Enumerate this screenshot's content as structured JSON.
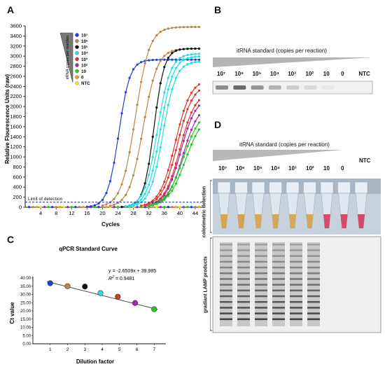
{
  "panels": {
    "A": {
      "letter": "A",
      "ylabel": "Relative Flourescence Units (raw)",
      "xlabel": "Cycles",
      "yticks": [
        0,
        200,
        400,
        600,
        800,
        1000,
        1200,
        1400,
        1600,
        1800,
        2000,
        2200,
        2400,
        2600,
        2800,
        3000,
        3200,
        3400,
        3600
      ],
      "xticks": [
        4,
        8,
        12,
        16,
        20,
        24,
        28,
        32,
        36,
        40,
        44
      ],
      "lod_label": "Limit of detection",
      "triangle_label": "itRNA copies per reaction",
      "legend": [
        {
          "label": "10⁷",
          "color": "#1f3fd6"
        },
        {
          "label": "10⁶",
          "color": "#b8864a"
        },
        {
          "label": "10⁵",
          "color": "#111111"
        },
        {
          "label": "10⁴",
          "color": "#22e0e0"
        },
        {
          "label": "10³",
          "color": "#e0332b"
        },
        {
          "label": "10²",
          "color": "#9b2ea3"
        },
        {
          "label": "10",
          "color": "#22cc22"
        },
        {
          "label": "0",
          "color": "#f0a020"
        },
        {
          "label": "NTC",
          "color": "#f5e020"
        }
      ]
    },
    "B": {
      "letter": "B",
      "title": "itRNA standard (copies per reaction)",
      "labels": [
        "10⁷",
        "10⁶",
        "10⁵",
        "10⁴",
        "10³",
        "10²",
        "10",
        "0",
        "NTC"
      ],
      "band_intensity": [
        0.55,
        0.75,
        0.5,
        0.35,
        0.2,
        0.12,
        0.05,
        0.0,
        0.0
      ]
    },
    "C": {
      "letter": "C",
      "title": "qPCR Standard Curve",
      "equation": "y = -2.6509x + 39.985",
      "r2_label": "R",
      "r2_sup": "2",
      "r2_value": " = 0.9481",
      "ylabel": "Ct value",
      "xlabel": "Dilution factor"
    },
    "D": {
      "letter": "D",
      "title": "itRNA standard (copies per reaction)",
      "labels": [
        "10⁷",
        "10⁶",
        "10⁵",
        "10⁴",
        "10³",
        "10²",
        "10",
        "0"
      ],
      "ntc_label": "NTC",
      "side_label_top": "colorimetric detection",
      "side_label_bottom": "gradiant LAMP products",
      "tube_colors": [
        "#d7a64c",
        "#d6a24a",
        "#d7a855",
        "#d5a654",
        "#d8a95a",
        "#d6a65a",
        "#d64a6a",
        "#d44a68",
        "#d4486a"
      ],
      "lanes_with_products": 6
    }
  },
  "chart_data": [
    {
      "type": "line",
      "title": "",
      "xlabel": "Cycles",
      "ylabel": "Relative Flourescence Units (raw)",
      "xlim": [
        0,
        46
      ],
      "ylim": [
        0,
        3600
      ],
      "limit_of_detection": 100,
      "series": [
        {
          "name": "10⁷",
          "color": "#1f3fd6",
          "curves": [
            {
              "ct": 24.2,
              "max": 2930,
              "k": 0.7
            }
          ]
        },
        {
          "name": "10⁶",
          "color": "#b8864a",
          "curves": [
            {
              "ct": 28.5,
              "max": 3580,
              "k": 0.55
            },
            {
              "ct": 30.5,
              "max": 3150,
              "k": 0.55
            }
          ]
        },
        {
          "name": "10⁵",
          "color": "#111111",
          "curves": [
            {
              "ct": 33.3,
              "max": 3150,
              "k": 0.75
            }
          ]
        },
        {
          "name": "10⁴",
          "color": "#22e0e0",
          "curves": [
            {
              "ct": 34.2,
              "max": 3050,
              "k": 0.6
            },
            {
              "ct": 34.9,
              "max": 3000,
              "k": 0.6
            },
            {
              "ct": 35.6,
              "max": 2900,
              "k": 0.6
            }
          ]
        },
        {
          "name": "10³",
          "color": "#e0332b",
          "curves": [
            {
              "ct": 38.8,
              "max": 2550,
              "k": 0.5
            },
            {
              "ct": 39.3,
              "max": 2450,
              "k": 0.5
            },
            {
              "ct": 40.0,
              "max": 2300,
              "k": 0.5
            }
          ]
        },
        {
          "name": "10²",
          "color": "#9b2ea3",
          "curves": [
            {
              "ct": 40.2,
              "max": 2200,
              "k": 0.5
            },
            {
              "ct": 40.8,
              "max": 2050,
              "k": 0.5
            }
          ]
        },
        {
          "name": "10",
          "color": "#22cc22",
          "curves": [
            {
              "ct": 40.9,
              "max": 1950,
              "k": 0.45
            },
            {
              "ct": 41.4,
              "max": 1850,
              "k": 0.45
            }
          ]
        },
        {
          "name": "0",
          "color": "#f0a020",
          "curves": []
        },
        {
          "name": "NTC",
          "color": "#f5e020",
          "curves": []
        }
      ]
    },
    {
      "type": "scatter",
      "title": "qPCR Standard Curve",
      "xlabel": "Dilution factor",
      "ylabel": "Ct value",
      "xlim": [
        0,
        8
      ],
      "ylim": [
        0,
        40
      ],
      "yticks": [
        "0.00",
        "5.00",
        "10.00",
        "15.00",
        "20.00",
        "25.00",
        "30.00",
        "35.00",
        "40.00"
      ],
      "xticks": [
        1,
        2,
        3,
        4,
        5,
        6,
        7
      ],
      "points": [
        {
          "x": 1,
          "y": 36.8,
          "color": "#1f3fd6"
        },
        {
          "x": 2,
          "y": 35.0,
          "color": "#b8864a"
        },
        {
          "x": 3,
          "y": 34.8,
          "color": "#111111"
        },
        {
          "x": 3.9,
          "y": 30.8,
          "color": "#22e0e0"
        },
        {
          "x": 4.9,
          "y": 28.6,
          "color": "#e0332b"
        },
        {
          "x": 5.9,
          "y": 24.8,
          "color": "#9b2ea3"
        },
        {
          "x": 7,
          "y": 21.0,
          "color": "#22cc22"
        }
      ],
      "trendline": {
        "slope": -2.6509,
        "intercept": 39.985
      }
    }
  ]
}
